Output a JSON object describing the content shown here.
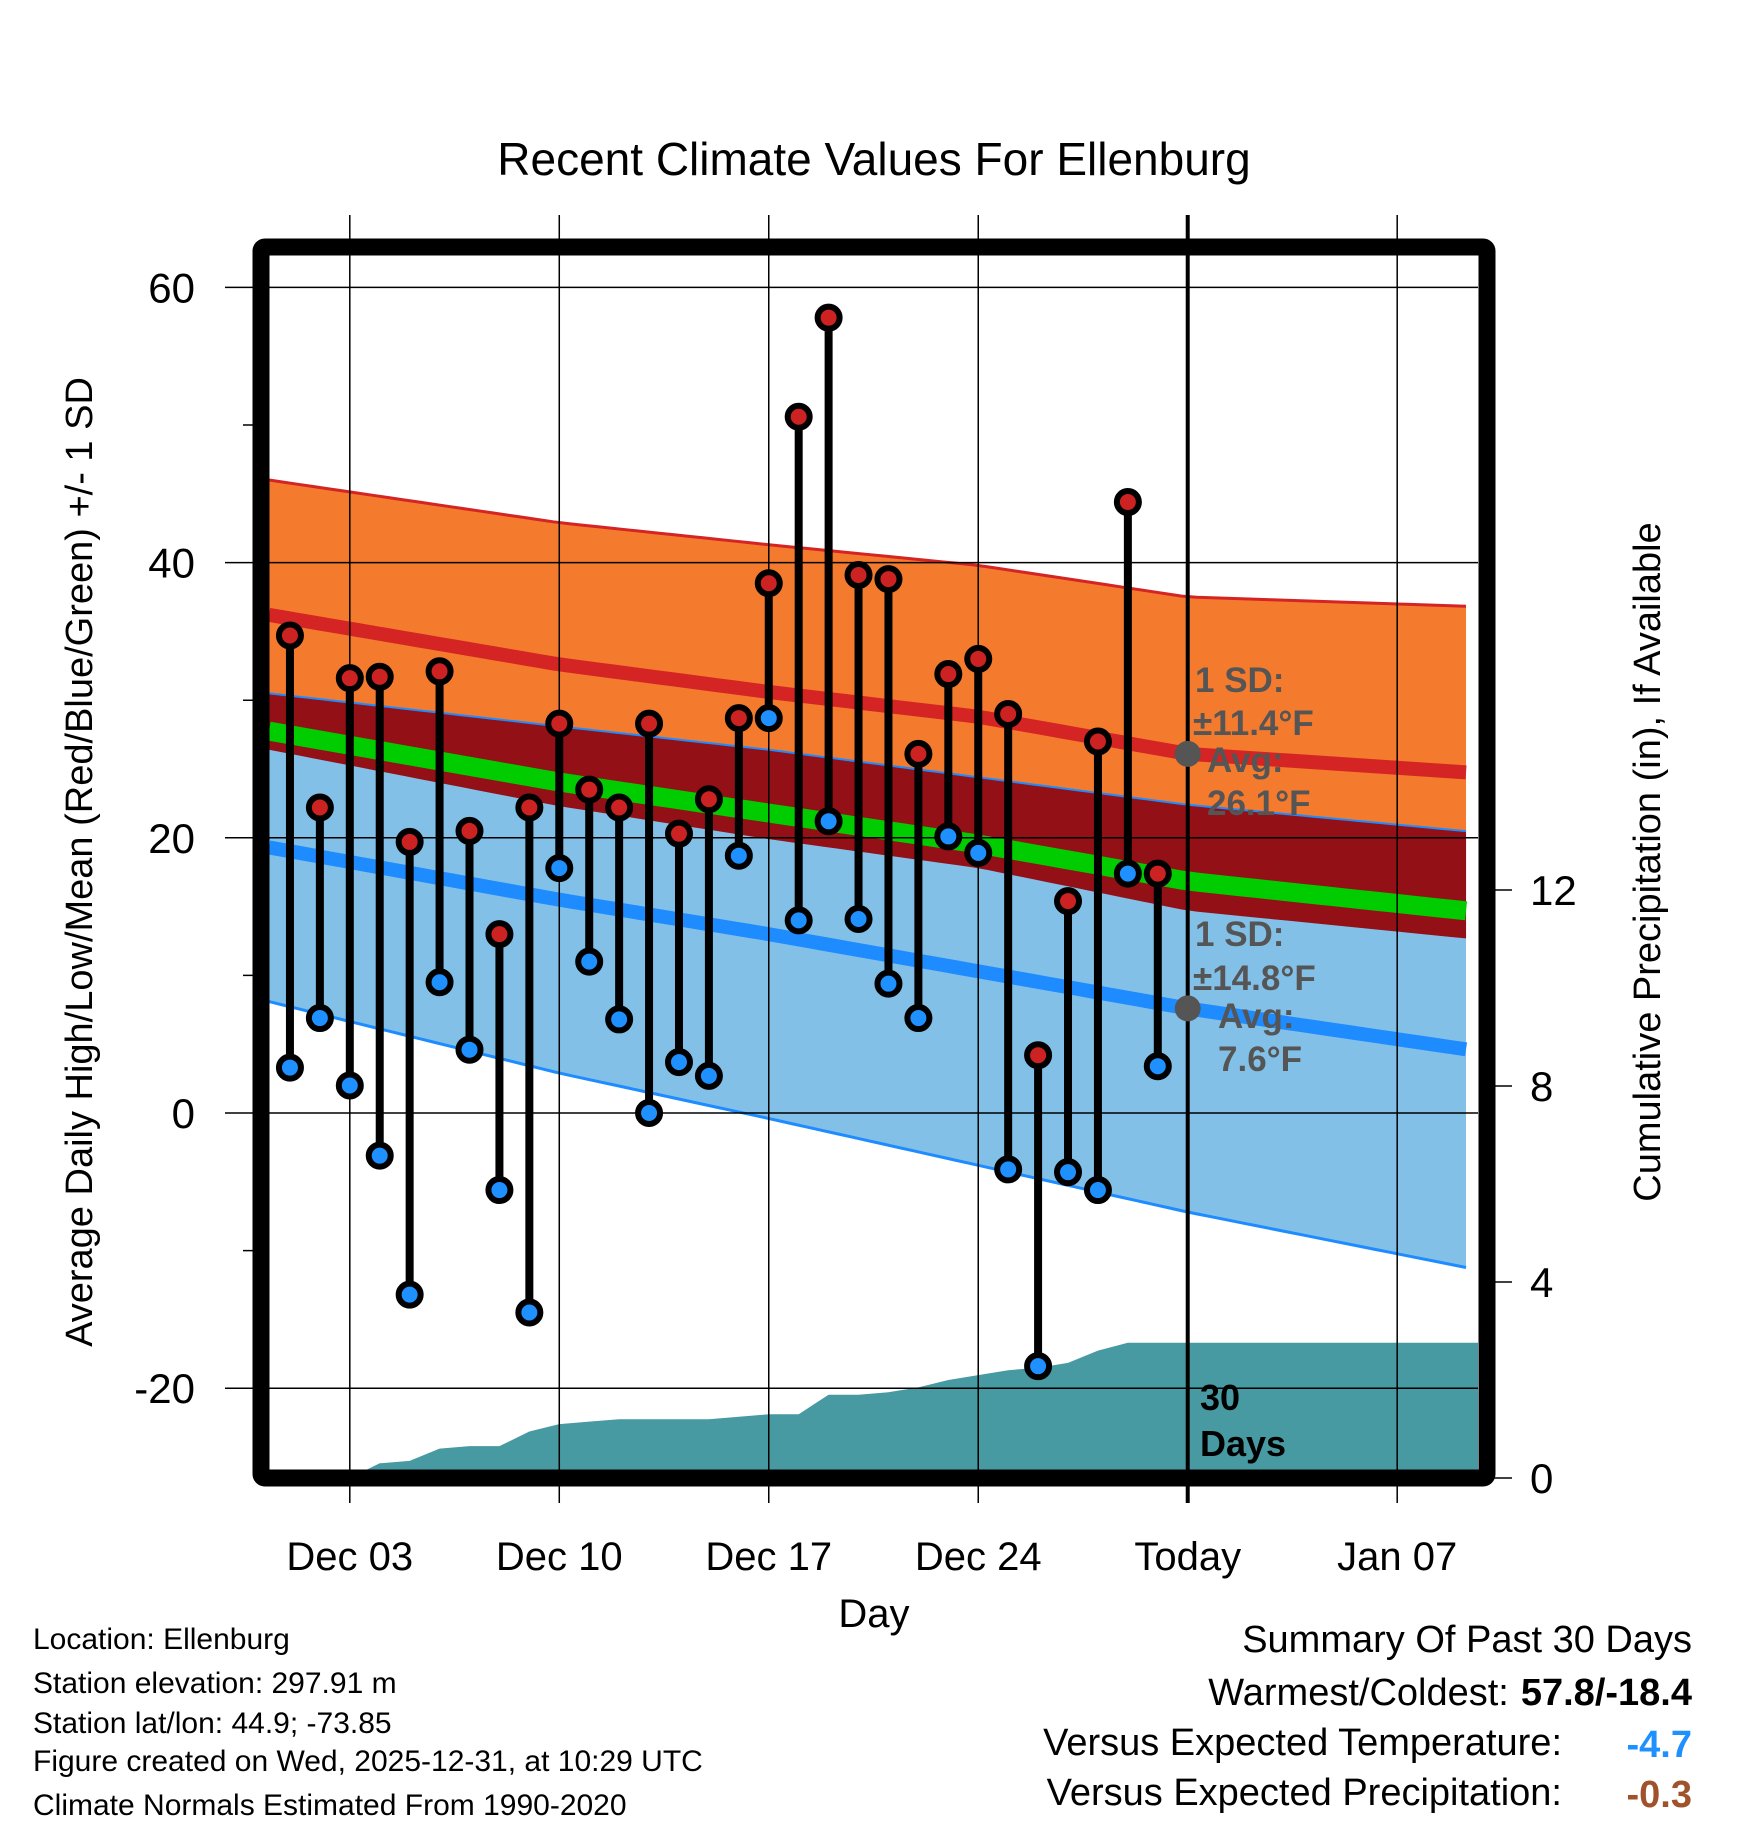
{
  "chart_data": {
    "type": "line",
    "title": "Recent Climate Values For Ellenburg",
    "xlabel": "Day",
    "ylabel": "Average Daily High/Low/Mean (Red/Blue/Green) +/- 1 SD",
    "y2label": "Cumulative Precipitation (in), If Available",
    "ylim": [
      -25.8,
      63
    ],
    "y2lim": [
      0,
      18
    ],
    "yticks": [
      "60",
      "40",
      "20",
      "0",
      "-20"
    ],
    "ytick_values": [
      60,
      40,
      20,
      0,
      -20
    ],
    "y2ticks": [
      "0",
      "4",
      "8",
      "12"
    ],
    "y2tick_values": [
      0,
      4,
      8,
      12
    ],
    "xticks": [
      "Dec 03",
      "Dec 10",
      "Dec 17",
      "Dec 24",
      "Today",
      "Jan 07"
    ],
    "xtick_days": [
      2,
      9,
      16,
      23,
      30,
      37
    ],
    "x_day_range": [
      -0.7,
      39.7
    ],
    "x_note": "day 0 = Dec 01",
    "days": [
      "Dec 01",
      "Dec 02",
      "Dec 03",
      "Dec 04",
      "Dec 05",
      "Dec 06",
      "Dec 07",
      "Dec 08",
      "Dec 09",
      "Dec 10",
      "Dec 11",
      "Dec 12",
      "Dec 13",
      "Dec 14",
      "Dec 15",
      "Dec 16",
      "Dec 17",
      "Dec 18",
      "Dec 19",
      "Dec 20",
      "Dec 21",
      "Dec 22",
      "Dec 23",
      "Dec 24",
      "Dec 25",
      "Dec 26",
      "Dec 27",
      "Dec 28",
      "Dec 29",
      "Dec 30"
    ],
    "series": [
      {
        "name": "Daily High",
        "color": "#cc2222",
        "values": [
          34.7,
          22.2,
          31.6,
          31.7,
          19.7,
          32.1,
          20.5,
          13.0,
          22.2,
          28.3,
          23.5,
          22.2,
          28.3,
          20.3,
          22.8,
          28.7,
          38.5,
          50.6,
          57.8,
          39.1,
          38.8,
          26.1,
          31.9,
          33.0,
          29.0,
          4.2,
          15.4,
          27.0,
          44.4,
          17.4
        ]
      },
      {
        "name": "Daily Low",
        "color": "#1e90ff",
        "values": [
          3.3,
          6.9,
          2.0,
          -3.1,
          -13.2,
          9.5,
          4.6,
          -5.6,
          -14.5,
          17.8,
          11.0,
          6.8,
          0.0,
          3.7,
          2.7,
          18.7,
          28.7,
          14.0,
          21.2,
          14.1,
          9.4,
          6.9,
          20.1,
          18.9,
          -4.1,
          -18.4,
          -4.3,
          -5.6,
          17.4,
          3.4
        ]
      }
    ],
    "normals": {
      "days": [
        -0.7,
        9,
        16,
        23,
        30,
        39.7
      ],
      "high": [
        36.2,
        32.6,
        30.6,
        28.8,
        26.1,
        24.7
      ],
      "high_sd": [
        9.8,
        10.3,
        10.7,
        11.0,
        11.4,
        12.1
      ],
      "low": [
        19.3,
        15.5,
        13.0,
        10.3,
        7.6,
        4.5
      ],
      "low_sd": [
        11.2,
        12.6,
        13.4,
        14.1,
        14.8,
        15.9
      ]
    },
    "precip_cumulative": {
      "days": [
        -0.7,
        2,
        3,
        4,
        5,
        6,
        7,
        8,
        9,
        10,
        11,
        12,
        13,
        14,
        15,
        16,
        17,
        18,
        19,
        20,
        21,
        22,
        23,
        24,
        25,
        26,
        27,
        28,
        29,
        39.7
      ],
      "values": [
        0,
        0,
        0.3,
        0.35,
        0.6,
        0.65,
        0.65,
        0.95,
        1.1,
        1.15,
        1.2,
        1.2,
        1.2,
        1.2,
        1.25,
        1.3,
        1.3,
        1.7,
        1.7,
        1.75,
        1.85,
        2.0,
        2.1,
        2.2,
        2.25,
        2.35,
        2.6,
        2.76,
        2.76,
        2.76
      ]
    },
    "annotations": {
      "high_sd": "1 SD:",
      "high_sd_value": "±11.4°F",
      "high_avg": "Avg:",
      "high_avg_value": "26.1°F",
      "low_sd": "1 SD:",
      "low_sd_value": "±14.8°F",
      "low_avg": "Avg:",
      "low_avg_value": "7.6°F",
      "days_count": "30",
      "days_word": "Days"
    },
    "colors": {
      "orange": "#f47a2e",
      "overlap": "#931016",
      "light_blue": "#82c0e8",
      "green": "#00cc00",
      "high_line": "#d42424",
      "low_line": "#1e8cff",
      "precip": "#4799a2"
    }
  },
  "footer": {
    "location": "Location: Ellenburg",
    "elevation": "Station elevation: 297.91 m",
    "latlon": "Station lat/lon: 44.9; -73.85",
    "created": "Figure created on Wed, 2025-12-31, at 10:29 UTC",
    "normals": "Climate Normals Estimated From 1990-2020"
  },
  "summary": {
    "title": "Summary Of Past 30 Days",
    "warmest_label": "Warmest/Coldest:",
    "warmest_value": "57.8/-18.4",
    "temp_label": "Versus Expected Temperature:",
    "temp_value": "-4.7",
    "temp_color": "#1e90ff",
    "precip_label": "Versus Expected Precipitation:",
    "precip_value": "-0.3",
    "precip_color": "#a0522d"
  }
}
